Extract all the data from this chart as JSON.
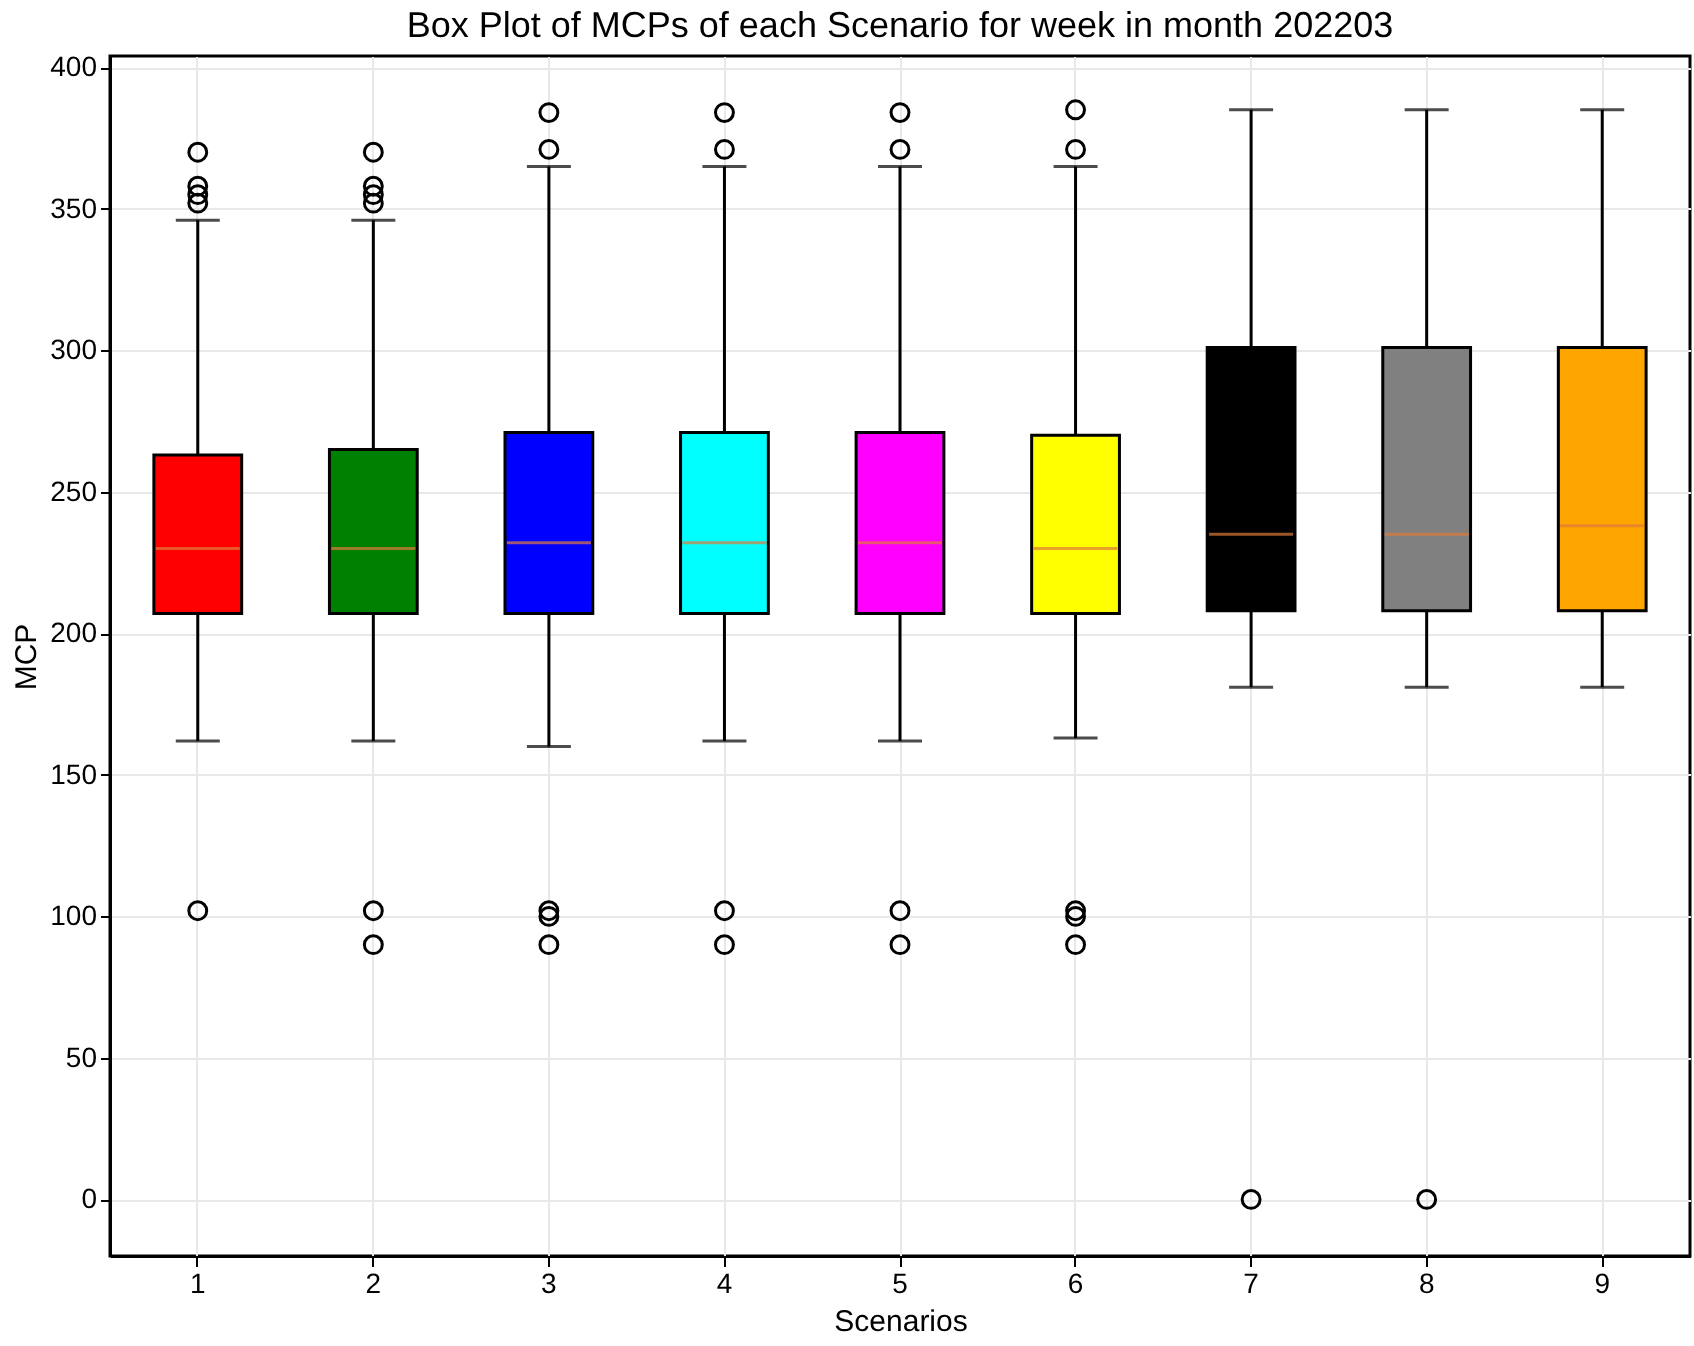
{
  "chart_data": {
    "type": "box",
    "title": "Box Plot of MCPs of each Scenario for week in month 202203",
    "xlabel": "Scenarios",
    "ylabel": "MCP",
    "categories": [
      "1",
      "2",
      "3",
      "4",
      "5",
      "6",
      "7",
      "8",
      "9"
    ],
    "colors": [
      "#ff0000",
      "#008000",
      "#0000ff",
      "#00ffff",
      "#ff00ff",
      "#ffff00",
      "#000000",
      "#808080",
      "#ffa500"
    ],
    "boxes": [
      {
        "low": 162,
        "q1": 207,
        "median": 230,
        "q3": 263,
        "high": 346,
        "outliers": [
          102,
          352,
          355,
          358,
          370
        ]
      },
      {
        "low": 162,
        "q1": 207,
        "median": 230,
        "q3": 265,
        "high": 346,
        "outliers": [
          90,
          102,
          352,
          355,
          358,
          370
        ]
      },
      {
        "low": 160,
        "q1": 207,
        "median": 232,
        "q3": 271,
        "high": 365,
        "outliers": [
          90,
          100,
          102,
          371,
          384
        ]
      },
      {
        "low": 162,
        "q1": 207,
        "median": 232,
        "q3": 271,
        "high": 365,
        "outliers": [
          90,
          102,
          371,
          384
        ]
      },
      {
        "low": 162,
        "q1": 207,
        "median": 232,
        "q3": 271,
        "high": 365,
        "outliers": [
          90,
          102,
          371,
          384
        ]
      },
      {
        "low": 163,
        "q1": 207,
        "median": 230,
        "q3": 270,
        "high": 365,
        "outliers": [
          90,
          100,
          102,
          371,
          385
        ]
      },
      {
        "low": 181,
        "q1": 208,
        "median": 235,
        "q3": 301,
        "high": 385,
        "outliers": [
          0
        ]
      },
      {
        "low": 181,
        "q1": 208,
        "median": 235,
        "q3": 301,
        "high": 385,
        "outliers": [
          0
        ]
      },
      {
        "low": 181,
        "q1": 208,
        "median": 238,
        "q3": 301,
        "high": 385
      }
    ],
    "ylim": [
      -20,
      404
    ],
    "yticks": [
      0,
      50,
      100,
      150,
      200,
      250,
      300,
      350,
      400
    ],
    "grid": true
  }
}
